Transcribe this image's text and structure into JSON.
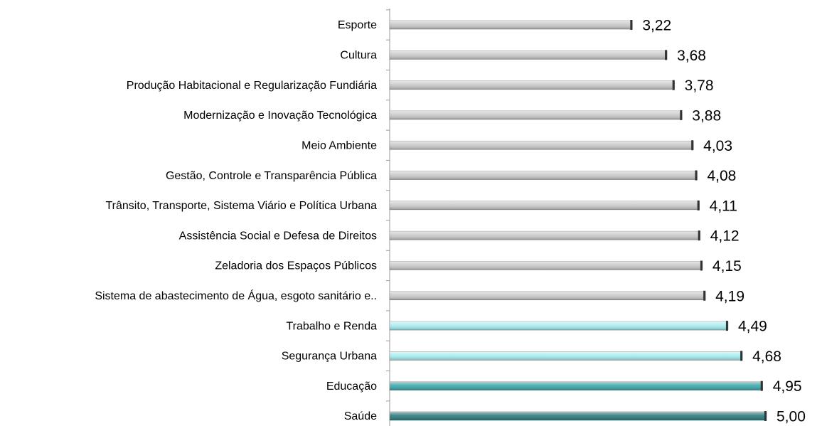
{
  "chart_data": {
    "type": "barh",
    "categories": [
      "Esporte",
      "Cultura",
      "Produção Habitacional e Regularização Fundiária",
      "Modernização e Inovação Tecnológica",
      "Meio Ambiente",
      "Gestão, Controle e Transparência Pública",
      "Trânsito, Transporte, Sistema Viário e Política Urbana",
      "Assistência Social e Defesa de Direitos",
      "Zeladoria dos Espaços Públicos",
      "Sistema de abastecimento de Água, esgoto sanitário e..",
      "Trabalho e Renda",
      "Segurança Urbana",
      "Educação",
      "Saúde"
    ],
    "values": [
      3.22,
      3.68,
      3.78,
      3.88,
      4.03,
      4.08,
      4.11,
      4.12,
      4.15,
      4.19,
      4.49,
      4.68,
      4.95,
      5.0
    ],
    "value_labels": [
      "3,22",
      "3,68",
      "3,78",
      "3,88",
      "4,03",
      "4,08",
      "4,11",
      "4,12",
      "4,15",
      "4,19",
      "4,49",
      "4,68",
      "4,95",
      "5,00"
    ],
    "colors": [
      "#c9c9c9",
      "#c9c9c9",
      "#c9c9c9",
      "#c9c9c9",
      "#c9c9c9",
      "#c9c9c9",
      "#c9c9c9",
      "#c9c9c9",
      "#c9c9c9",
      "#c9c9c9",
      "#a6eef2",
      "#a6eef2",
      "#3ba7aa",
      "#2b7a7c"
    ]
  }
}
